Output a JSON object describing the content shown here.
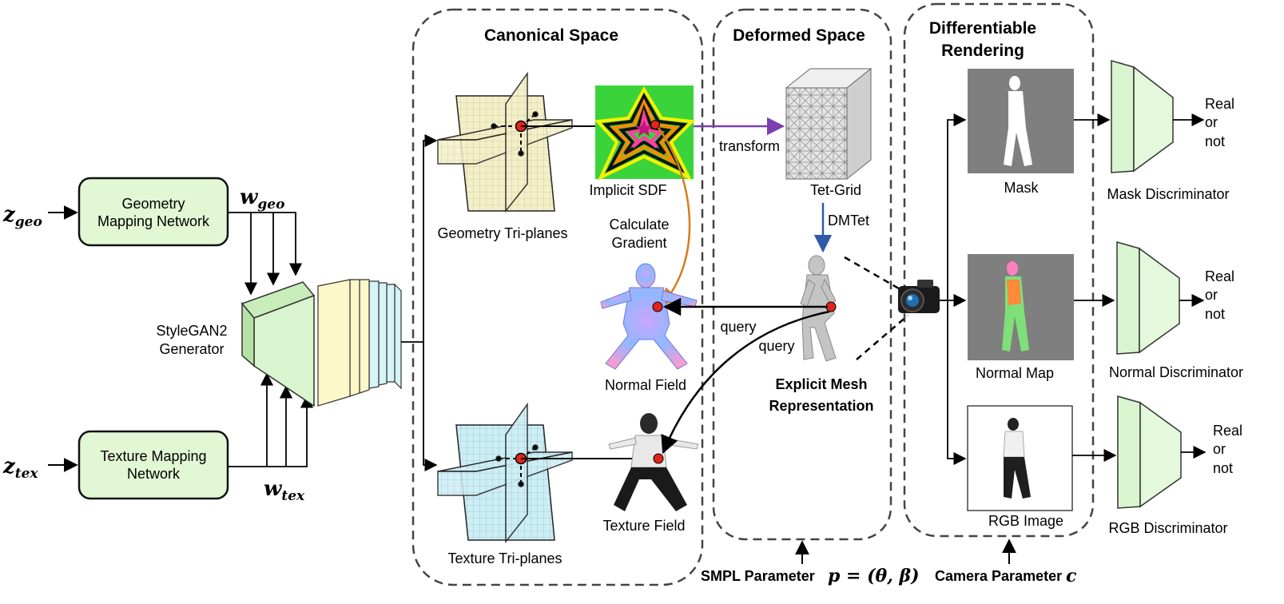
{
  "inputs": {
    "z_geo": {
      "base": "z",
      "sub": "geo"
    },
    "z_tex": {
      "base": "z",
      "sub": "tex"
    },
    "w_geo": {
      "base": "w",
      "sub": "geo"
    },
    "w_tex": {
      "base": "w",
      "sub": "tex"
    }
  },
  "mapping": {
    "geometry": [
      "Geometry",
      "Mapping Network"
    ],
    "texture": [
      "Texture Mapping",
      "Network"
    ]
  },
  "generator": [
    "StyleGAN2",
    "Generator"
  ],
  "sections": {
    "canonical": "Canonical Space",
    "deformed": "Deformed Space",
    "rendering": [
      "Differentiable",
      "Rendering"
    ]
  },
  "canonical": {
    "geometry_triplanes": "Geometry Tri-planes",
    "texture_triplanes": "Texture Tri-planes",
    "implicit_sdf": "Implicit SDF",
    "calc_gradient": [
      "Calculate",
      "Gradient"
    ],
    "normal_field": "Normal Field",
    "texture_field": "Texture Field"
  },
  "deformed": {
    "transform": "transform",
    "tet_grid": "Tet-Grid",
    "dmtet": "DMTet",
    "query1": "query",
    "query2": "query",
    "explicit_mesh": [
      "Explicit Mesh",
      "Representation"
    ]
  },
  "rendering": {
    "mask": "Mask",
    "normal_map": "Normal Map",
    "rgb_image": "RGB Image"
  },
  "discriminators": {
    "mask": "Mask Discriminator",
    "normal": "Normal Discriminator",
    "rgb": "RGB Discriminator",
    "output": [
      "Real",
      "or",
      "not"
    ]
  },
  "params": {
    "smpl_label": "SMPL Parameter",
    "smpl_math": "p = (θ, β)",
    "camera_label": "Camera Parameter",
    "camera_math": "c"
  },
  "colors": {
    "mapping_fill": "#e2f7d4",
    "mapping_stroke": "#111111",
    "generator_fill": "#d9f5cf",
    "feature_yellow": "#fdf8c8",
    "feature_cyan": "#d6f3f7",
    "geo_plane": "#f3f0c8",
    "tex_plane": "#cdeef5",
    "discriminator_fill": "#d9f5cf",
    "render_bg": "#7f7f7f",
    "transform_arrow": "#7b3fb0",
    "dmtet_arrow": "#2e5aa8",
    "gradient_arrow": "#d97a1e",
    "query_point": "#e0251b"
  }
}
